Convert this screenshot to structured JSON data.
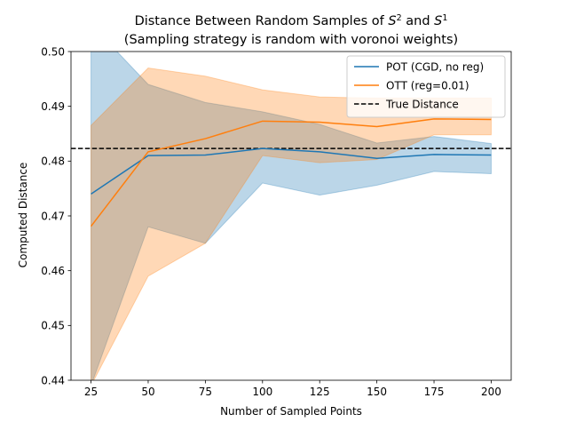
{
  "chart_data": {
    "type": "line",
    "title_line1": "Distance Between Random Samples of S² and S¹",
    "title_line2": "(Sampling strategy is random with voronoi weights)",
    "xlabel": "Number of Sampled Points",
    "ylabel": "Computed Distance",
    "xlim": [
      16.25,
      208.75
    ],
    "ylim": [
      0.44,
      0.5
    ],
    "xticks": [
      25,
      50,
      75,
      100,
      125,
      150,
      175,
      200
    ],
    "yticks": [
      0.44,
      0.45,
      0.46,
      0.47,
      0.48,
      0.49,
      0.5
    ],
    "xtick_labels": [
      "25",
      "50",
      "75",
      "100",
      "125",
      "150",
      "175",
      "200"
    ],
    "ytick_labels": [
      "0.44",
      "0.45",
      "0.46",
      "0.47",
      "0.48",
      "0.49",
      "0.50"
    ],
    "x": [
      25,
      50,
      75,
      100,
      125,
      150,
      175,
      200
    ],
    "series": [
      {
        "name": "POT (CGD, no reg)",
        "color": "#1f77b4",
        "values": [
          0.474,
          0.481,
          0.4811,
          0.4823,
          0.4817,
          0.4805,
          0.4812,
          0.4811
        ],
        "upper": [
          0.505,
          0.494,
          0.4907,
          0.489,
          0.4867,
          0.4833,
          0.4845,
          0.4832
        ],
        "lower": [
          0.439,
          0.468,
          0.465,
          0.476,
          0.4738,
          0.4756,
          0.4781,
          0.4777
        ]
      },
      {
        "name": "OTT (reg=0.01)",
        "color": "#ff7f0e",
        "values": [
          0.4681,
          0.4817,
          0.4841,
          0.4873,
          0.4871,
          0.4863,
          0.4877,
          0.4876
        ],
        "upper": [
          0.4865,
          0.497,
          0.4955,
          0.493,
          0.4917,
          0.4915,
          0.4915,
          0.4915
        ],
        "lower": [
          0.439,
          0.459,
          0.465,
          0.481,
          0.4797,
          0.4803,
          0.4848,
          0.4848
        ]
      }
    ],
    "reference_line": {
      "name": "True Distance",
      "value": 0.4823,
      "color": "#000000",
      "style": "dashed"
    },
    "legend_position": "top-right",
    "grid": false
  }
}
